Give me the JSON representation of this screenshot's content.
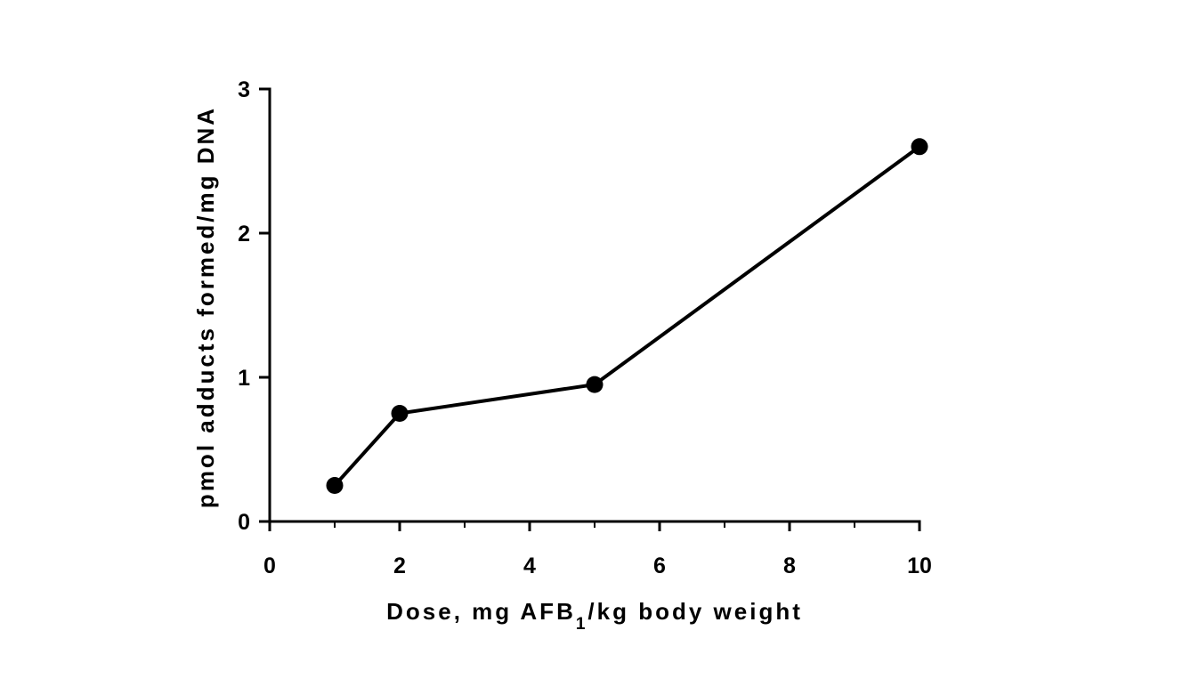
{
  "chart_data": {
    "type": "line",
    "title": "",
    "xlabel": {
      "prefix": "Dose, mg AFB",
      "subscript": "1",
      "suffix": "/kg body weight"
    },
    "ylabel": "pmol adducts formed/mg DNA",
    "xlim": [
      0,
      10
    ],
    "ylim": [
      0,
      3
    ],
    "x_ticks": [
      0,
      2,
      4,
      6,
      8,
      10
    ],
    "x_minor_ticks": [
      1,
      3,
      5,
      7,
      9
    ],
    "y_ticks": [
      0,
      1,
      2,
      3
    ],
    "grid": false,
    "legend": "none",
    "series": [
      {
        "x": [
          1,
          2,
          5,
          10
        ],
        "values": [
          0.25,
          0.75,
          0.95,
          2.6
        ],
        "color": "#000000",
        "marker": "filled-circle"
      }
    ]
  }
}
